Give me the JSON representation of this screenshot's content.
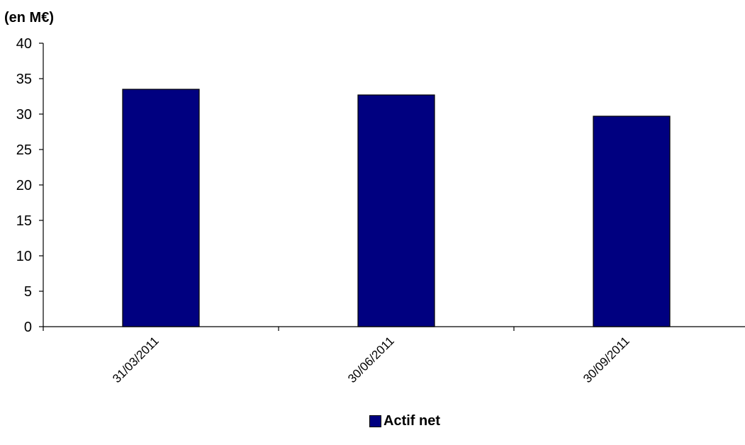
{
  "chart_data": {
    "type": "bar",
    "unit_label": "(en M€)",
    "categories": [
      "31/03/2011",
      "30/06/2011",
      "30/09/2011"
    ],
    "series": [
      {
        "name": "Actif net",
        "color": "#000080",
        "values": [
          33.5,
          32.7,
          29.7
        ]
      }
    ],
    "y_ticks": [
      "0",
      "5",
      "10",
      "15",
      "20",
      "25",
      "30",
      "35",
      "40"
    ],
    "ylim": [
      0,
      40
    ],
    "grid": false,
    "legend_position": "bottom-center"
  }
}
